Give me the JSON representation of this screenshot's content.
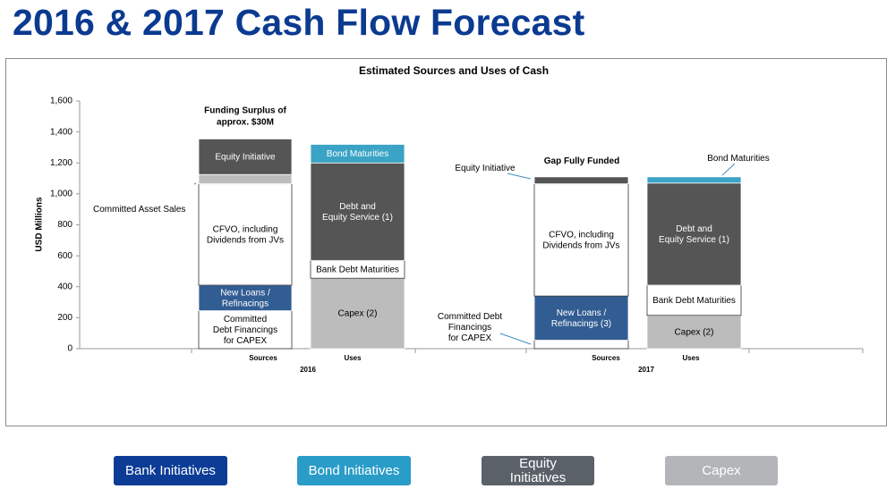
{
  "page": {
    "title": "2016 & 2017 Cash Flow Forecast"
  },
  "legend_buttons": [
    {
      "label": "Bank Initiatives",
      "color": "#0c3c96"
    },
    {
      "label": "Bond Initiatives",
      "color": "#2a9cc8"
    },
    {
      "label": "Equity\nInitiatives",
      "color": "#5b6169"
    },
    {
      "label": "Capex",
      "color": "#b3b5b8"
    }
  ],
  "chart_data": {
    "type": "bar",
    "stacked": true,
    "title": "Estimated Sources and Uses of Cash",
    "ylabel": "USD Millions",
    "ylim": [
      0,
      1600
    ],
    "yticks": [
      0,
      200,
      400,
      600,
      800,
      1000,
      1200,
      1400,
      1600
    ],
    "gridlines": false,
    "groups": [
      {
        "year": "2016",
        "annotation": "Funding Surplus of\napprox. $30M",
        "bars": [
          {
            "category": "Sources",
            "segments": [
              {
                "label": "Committed\nDebt Financings\nfor CAPEX",
                "value": 245,
                "color": "#ffffff"
              },
              {
                "label": "New Loans /\nRefinacings",
                "value": 165,
                "color": "#325d93"
              },
              {
                "label": "CFVO, including\nDividends from JVs",
                "value": 655,
                "color": "#ffffff"
              },
              {
                "label": "Committed Asset Sales",
                "value": 60,
                "color": "#bcbcbc",
                "callout": true
              },
              {
                "label": "Equity Initiative",
                "value": 230,
                "color": "#555555"
              }
            ]
          },
          {
            "category": "Uses",
            "segments": [
              {
                "label": "Capex (2)",
                "value": 455,
                "color": "#bcbcbc"
              },
              {
                "label": "Bank Debt Maturities",
                "value": 115,
                "color": "#ffffff"
              },
              {
                "label": "Debt and\nEquity Service (1)",
                "value": 630,
                "color": "#555555"
              },
              {
                "label": "Bond Maturities",
                "value": 120,
                "color": "#3aa3c6"
              }
            ]
          }
        ]
      },
      {
        "year": "2017",
        "annotation": "Gap Fully Funded",
        "bars": [
          {
            "category": "Sources",
            "segments": [
              {
                "label": "Committed Debt\nFinancings\nfor CAPEX",
                "value": 55,
                "color": "#ffffff",
                "callout": true
              },
              {
                "label": "New Loans /\nRefinacings (3)",
                "value": 285,
                "color": "#325d93"
              },
              {
                "label": "CFVO, including\nDividends from JVs",
                "value": 725,
                "color": "#ffffff"
              },
              {
                "label": "Equity Initiative",
                "value": 45,
                "color": "#555555",
                "callout": true
              }
            ]
          },
          {
            "category": "Uses",
            "segments": [
              {
                "label": "Capex (2)",
                "value": 215,
                "color": "#bcbcbc"
              },
              {
                "label": "Bank Debt Maturities",
                "value": 195,
                "color": "#ffffff"
              },
              {
                "label": "Debt and\nEquity Service (1)",
                "value": 660,
                "color": "#555555"
              },
              {
                "label": "Bond Maturities",
                "value": 40,
                "color": "#3aa3c6",
                "callout": true
              }
            ]
          }
        ]
      }
    ]
  }
}
